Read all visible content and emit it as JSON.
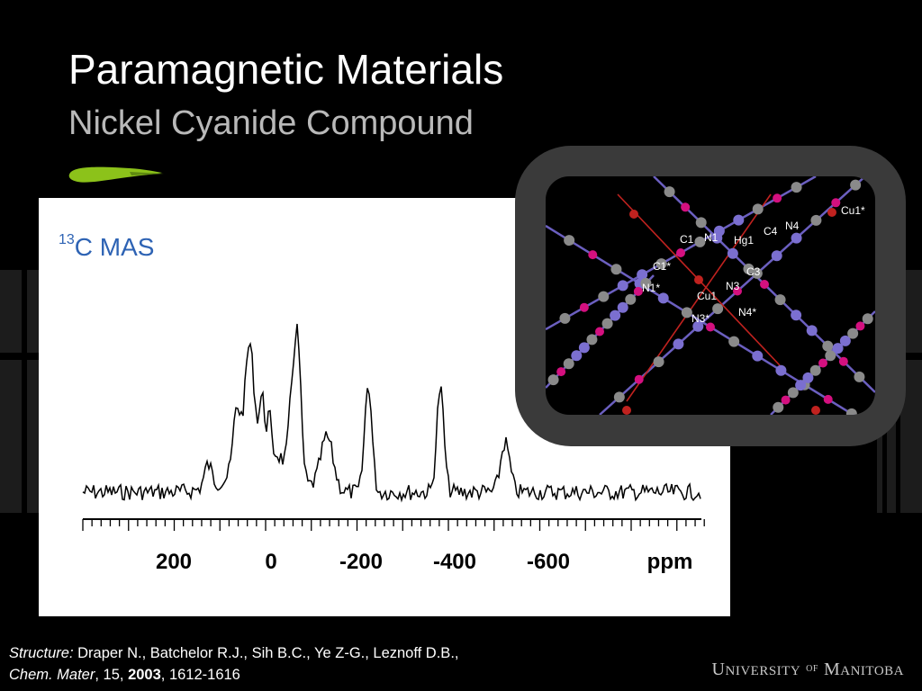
{
  "slide": {
    "title": "Paramagnetic Materials",
    "subtitle": "Nickel Cyanide Compound"
  },
  "spectrum": {
    "label_sup": "13",
    "label_text": "C MAS",
    "axis_labels": [
      "200",
      "0",
      "-200",
      "-400",
      "-600"
    ],
    "unit": "ppm"
  },
  "structure": {
    "atom_labels": [
      "C1",
      "N1",
      "Hg1",
      "C4",
      "N4",
      "Cu1*",
      "C1*",
      "C3",
      "N1*",
      "N3",
      "Cu1",
      "N3*",
      "N4*"
    ],
    "colors": {
      "copper": "#c0221f",
      "mercury": "#d4107f",
      "carbon": "#8a8a8a",
      "nitrogen": "#7b6fd0",
      "bond": "#6b5fc0"
    }
  },
  "citation": {
    "structure_label": "Structure:",
    "authors": " Draper N., Batchelor R.J., Sih B.C., Ye Z-G., Leznoff D.B.,",
    "journal": "Chem. Mater",
    "volume": ", 15, ",
    "year": "2003",
    "pages": ", 1612-1616"
  },
  "footer": {
    "u1": "U",
    "u2": "NIVERSITY",
    "of": "OF",
    "m1": "M",
    "m2": "ANITOBA"
  },
  "theme": {
    "accent_green": "#8cc21a",
    "label_blue": "#2e63b4"
  }
}
